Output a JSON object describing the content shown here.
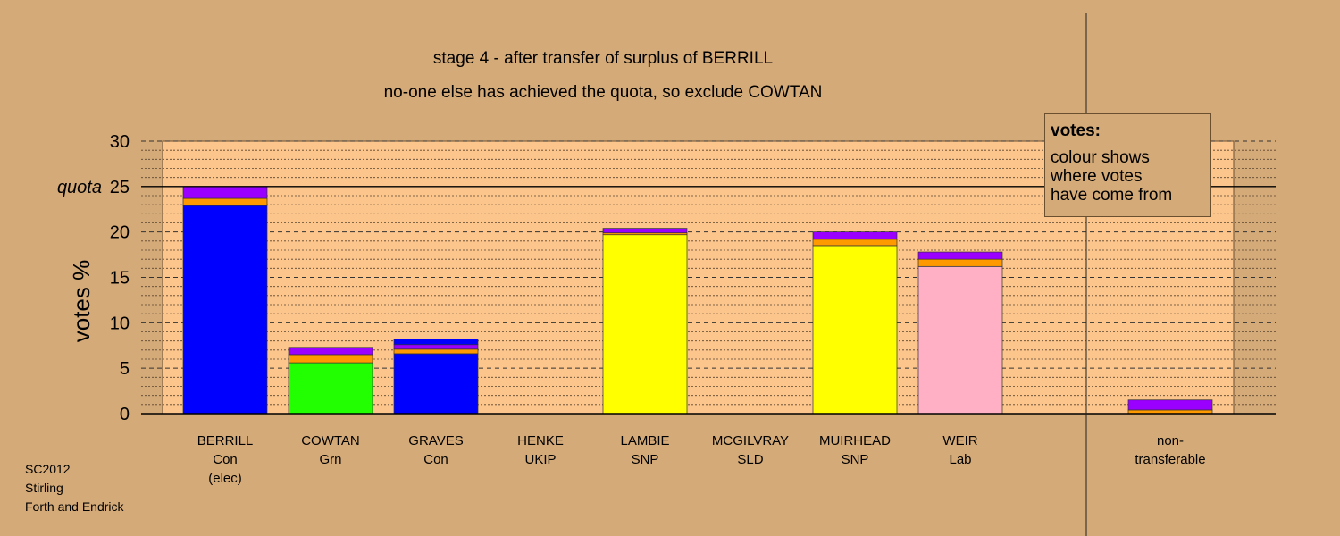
{
  "title": "stage 4 - after transfer of surplus of BERRILL",
  "subtitle": "no-one else has achieved the quota, so exclude COWTAN",
  "legend": {
    "title": "votes:",
    "lines": [
      "colour shows",
      "where votes",
      "have come from"
    ]
  },
  "footer": [
    "SC2012",
    "Stirling",
    "Forth and Endrick"
  ],
  "colors": {
    "background": "#d4aa78",
    "plot_band": "#fbc58c",
    "Con": "#0000ff",
    "Grn": "#22ff00",
    "SNP": "#ffff00",
    "Lab": "#ffb0c4",
    "transfer_orange": "#ff9900",
    "transfer_purple": "#9900ff"
  },
  "chart_data": {
    "type": "bar",
    "stacked": true,
    "ylabel": "votes %",
    "ylim": [
      0,
      30
    ],
    "yticks": [
      0,
      5,
      10,
      15,
      20,
      25,
      30
    ],
    "quota": 25,
    "quota_label": "quota",
    "grid": true,
    "categories": [
      {
        "name": "BERRILL",
        "lines": [
          "BERRILL",
          "Con",
          "(elec)"
        ]
      },
      {
        "name": "COWTAN",
        "lines": [
          "COWTAN",
          "Grn"
        ]
      },
      {
        "name": "GRAVES",
        "lines": [
          "GRAVES",
          "Con"
        ]
      },
      {
        "name": "HENKE",
        "lines": [
          "HENKE",
          "UKIP"
        ]
      },
      {
        "name": "LAMBIE",
        "lines": [
          "LAMBIE",
          "SNP"
        ]
      },
      {
        "name": "MCGILVRAY",
        "lines": [
          "MCGILVRAY",
          "SLD"
        ]
      },
      {
        "name": "MUIRHEAD",
        "lines": [
          "MUIRHEAD",
          "SNP"
        ]
      },
      {
        "name": "WEIR",
        "lines": [
          "WEIR",
          "Lab"
        ]
      },
      {
        "name": "non-transferable",
        "lines": [
          "non-",
          "transferable"
        ]
      }
    ],
    "stacks": [
      [
        {
          "color": "#0000ff",
          "value": 22.9
        },
        {
          "color": "#ff9900",
          "value": 0.8
        },
        {
          "color": "#9900ff",
          "value": 1.3
        }
      ],
      [
        {
          "color": "#22ff00",
          "value": 5.6
        },
        {
          "color": "#ff9900",
          "value": 0.9
        },
        {
          "color": "#9900ff",
          "value": 0.8
        }
      ],
      [
        {
          "color": "#0000ff",
          "value": 6.6
        },
        {
          "color": "#ff9900",
          "value": 0.5
        },
        {
          "color": "#9900ff",
          "value": 0.5
        },
        {
          "color": "#0000ff",
          "value": 0.6
        }
      ],
      [],
      [
        {
          "color": "#ffff00",
          "value": 19.7
        },
        {
          "color": "#ff9900",
          "value": 0.2
        },
        {
          "color": "#9900ff",
          "value": 0.5
        }
      ],
      [],
      [
        {
          "color": "#ffff00",
          "value": 18.5
        },
        {
          "color": "#ff9900",
          "value": 0.7
        },
        {
          "color": "#9900ff",
          "value": 0.8
        }
      ],
      [
        {
          "color": "#ffb0c4",
          "value": 16.2
        },
        {
          "color": "#ff9900",
          "value": 0.8
        },
        {
          "color": "#9900ff",
          "value": 0.8
        }
      ],
      [
        {
          "color": "#ff9900",
          "value": 0.4
        },
        {
          "color": "#9900ff",
          "value": 1.1
        }
      ]
    ]
  }
}
